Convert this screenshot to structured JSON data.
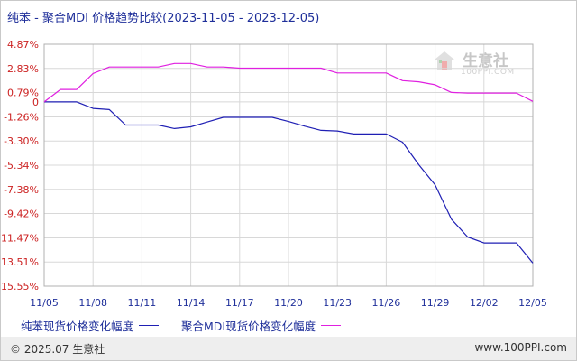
{
  "title": "纯苯 - 聚合MDI 价格趋势比较(2023-11-05 - 2023-12-05)",
  "chart_data": {
    "type": "line",
    "title": "纯苯 - 聚合MDI 价格趋势比较(2023-11-05 - 2023-12-05)",
    "xlabel": "",
    "ylabel": "",
    "x": [
      "11/05",
      "11/06",
      "11/07",
      "11/08",
      "11/09",
      "11/10",
      "11/11",
      "11/12",
      "11/13",
      "11/14",
      "11/15",
      "11/16",
      "11/17",
      "11/18",
      "11/19",
      "11/20",
      "11/21",
      "11/22",
      "11/23",
      "11/24",
      "11/25",
      "11/26",
      "11/27",
      "11/28",
      "11/29",
      "11/30",
      "12/01",
      "12/02",
      "12/03",
      "12/04",
      "12/05"
    ],
    "x_tick_labels": [
      "11/05",
      "11/08",
      "11/11",
      "11/14",
      "11/17",
      "11/20",
      "11/23",
      "11/26",
      "11/29",
      "12/02",
      "12/05"
    ],
    "y_tick_labels": [
      "4.87%",
      "2.83%",
      "0.79%",
      "0",
      "-1.26%",
      "-3.30%",
      "-5.34%",
      "-7.38%",
      "-9.42%",
      "-11.47%",
      "-13.51%",
      "-15.55%"
    ],
    "y_ticks": [
      4.87,
      2.83,
      0.79,
      0,
      -1.26,
      -3.3,
      -5.34,
      -7.38,
      -9.42,
      -11.47,
      -13.51,
      -15.55
    ],
    "ylim": [
      -15.55,
      4.87
    ],
    "grid": true,
    "legend_position": "bottom",
    "series": [
      {
        "name": "纯苯现货价格变化幅度",
        "color": "#1f1fb4",
        "values": [
          0,
          0,
          0,
          -0.55,
          -0.65,
          -1.95,
          -1.95,
          -1.95,
          -2.25,
          -2.1,
          -1.7,
          -1.3,
          -1.3,
          -1.3,
          -1.3,
          -1.65,
          -2.05,
          -2.4,
          -2.45,
          -2.7,
          -2.7,
          -2.7,
          -3.4,
          -5.3,
          -7.0,
          -9.9,
          -11.4,
          -11.9,
          -11.9,
          -11.9,
          -13.6
        ]
      },
      {
        "name": "聚合MDI现货价格变化幅度",
        "color": "#e020e0",
        "values": [
          0,
          1.05,
          1.05,
          2.4,
          2.95,
          2.95,
          2.95,
          2.95,
          3.25,
          3.25,
          2.95,
          2.95,
          2.85,
          2.85,
          2.85,
          2.85,
          2.85,
          2.85,
          2.45,
          2.45,
          2.45,
          2.45,
          1.8,
          1.7,
          1.45,
          0.8,
          0.75,
          0.75,
          0.75,
          0.75,
          0.05
        ]
      }
    ]
  },
  "legend": {
    "items": [
      {
        "label": "纯苯现货价格变化幅度",
        "color": "#1f1fb4"
      },
      {
        "label": "聚合MDI现货价格变化幅度",
        "color": "#e020e0"
      }
    ]
  },
  "watermark": {
    "text": "生意社",
    "sub": "100PPI.COM"
  },
  "footer": {
    "copyright": "© 2025.07 生意社",
    "site": "www.100PPI.com"
  }
}
